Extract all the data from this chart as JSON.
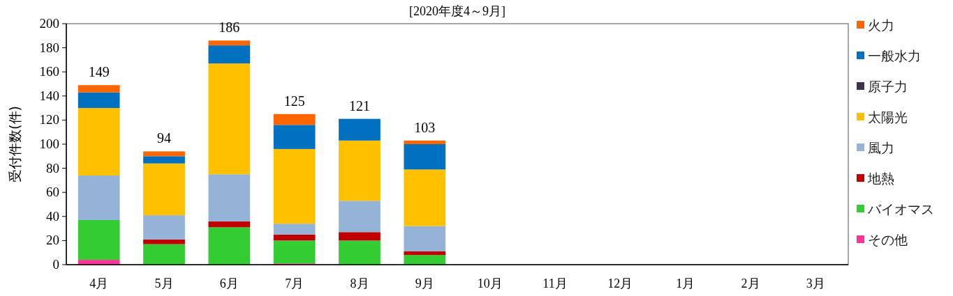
{
  "chart_data": {
    "type": "bar",
    "stacked": true,
    "title": "[2020年度4～9月]",
    "ylabel": "受付件数(件)",
    "categories": [
      "4月",
      "5月",
      "6月",
      "7月",
      "8月",
      "9月",
      "10月",
      "11月",
      "12月",
      "1月",
      "2月",
      "3月"
    ],
    "ylim": [
      0,
      200
    ],
    "yticks": [
      0,
      20,
      40,
      60,
      80,
      100,
      120,
      140,
      160,
      180,
      200
    ],
    "grid": false,
    "legend": "right",
    "series": [
      {
        "name": "その他",
        "color": "#ff3399",
        "values": [
          4,
          0,
          0,
          1,
          0,
          0,
          null,
          null,
          null,
          null,
          null,
          null
        ]
      },
      {
        "name": "バイオマス",
        "color": "#33cc33",
        "values": [
          33,
          17,
          31,
          19,
          20,
          8,
          null,
          null,
          null,
          null,
          null,
          null
        ]
      },
      {
        "name": "地熱",
        "color": "#c00000",
        "values": [
          0,
          4,
          5,
          5,
          7,
          3,
          null,
          null,
          null,
          null,
          null,
          null
        ]
      },
      {
        "name": "風力",
        "color": "#95b3d7",
        "values": [
          37,
          20,
          39,
          9,
          26,
          21,
          null,
          null,
          null,
          null,
          null,
          null
        ]
      },
      {
        "name": "太陽光",
        "color": "#ffc000",
        "values": [
          56,
          43,
          92,
          62,
          50,
          47,
          null,
          null,
          null,
          null,
          null,
          null
        ]
      },
      {
        "name": "原子力",
        "color": "#403151",
        "values": [
          0,
          0,
          0,
          0,
          0,
          0,
          null,
          null,
          null,
          null,
          null,
          null
        ]
      },
      {
        "name": "一般水力",
        "color": "#0070c0",
        "values": [
          13,
          6,
          15,
          20,
          18,
          21,
          null,
          null,
          null,
          null,
          null,
          null
        ]
      },
      {
        "name": "火力",
        "color": "#ff6600",
        "values": [
          6,
          4,
          4,
          9,
          0,
          3,
          null,
          null,
          null,
          null,
          null,
          null
        ]
      }
    ],
    "totals": [
      "149",
      "94",
      "186",
      "125",
      "121",
      "103",
      null,
      null,
      null,
      null,
      null,
      null
    ]
  }
}
